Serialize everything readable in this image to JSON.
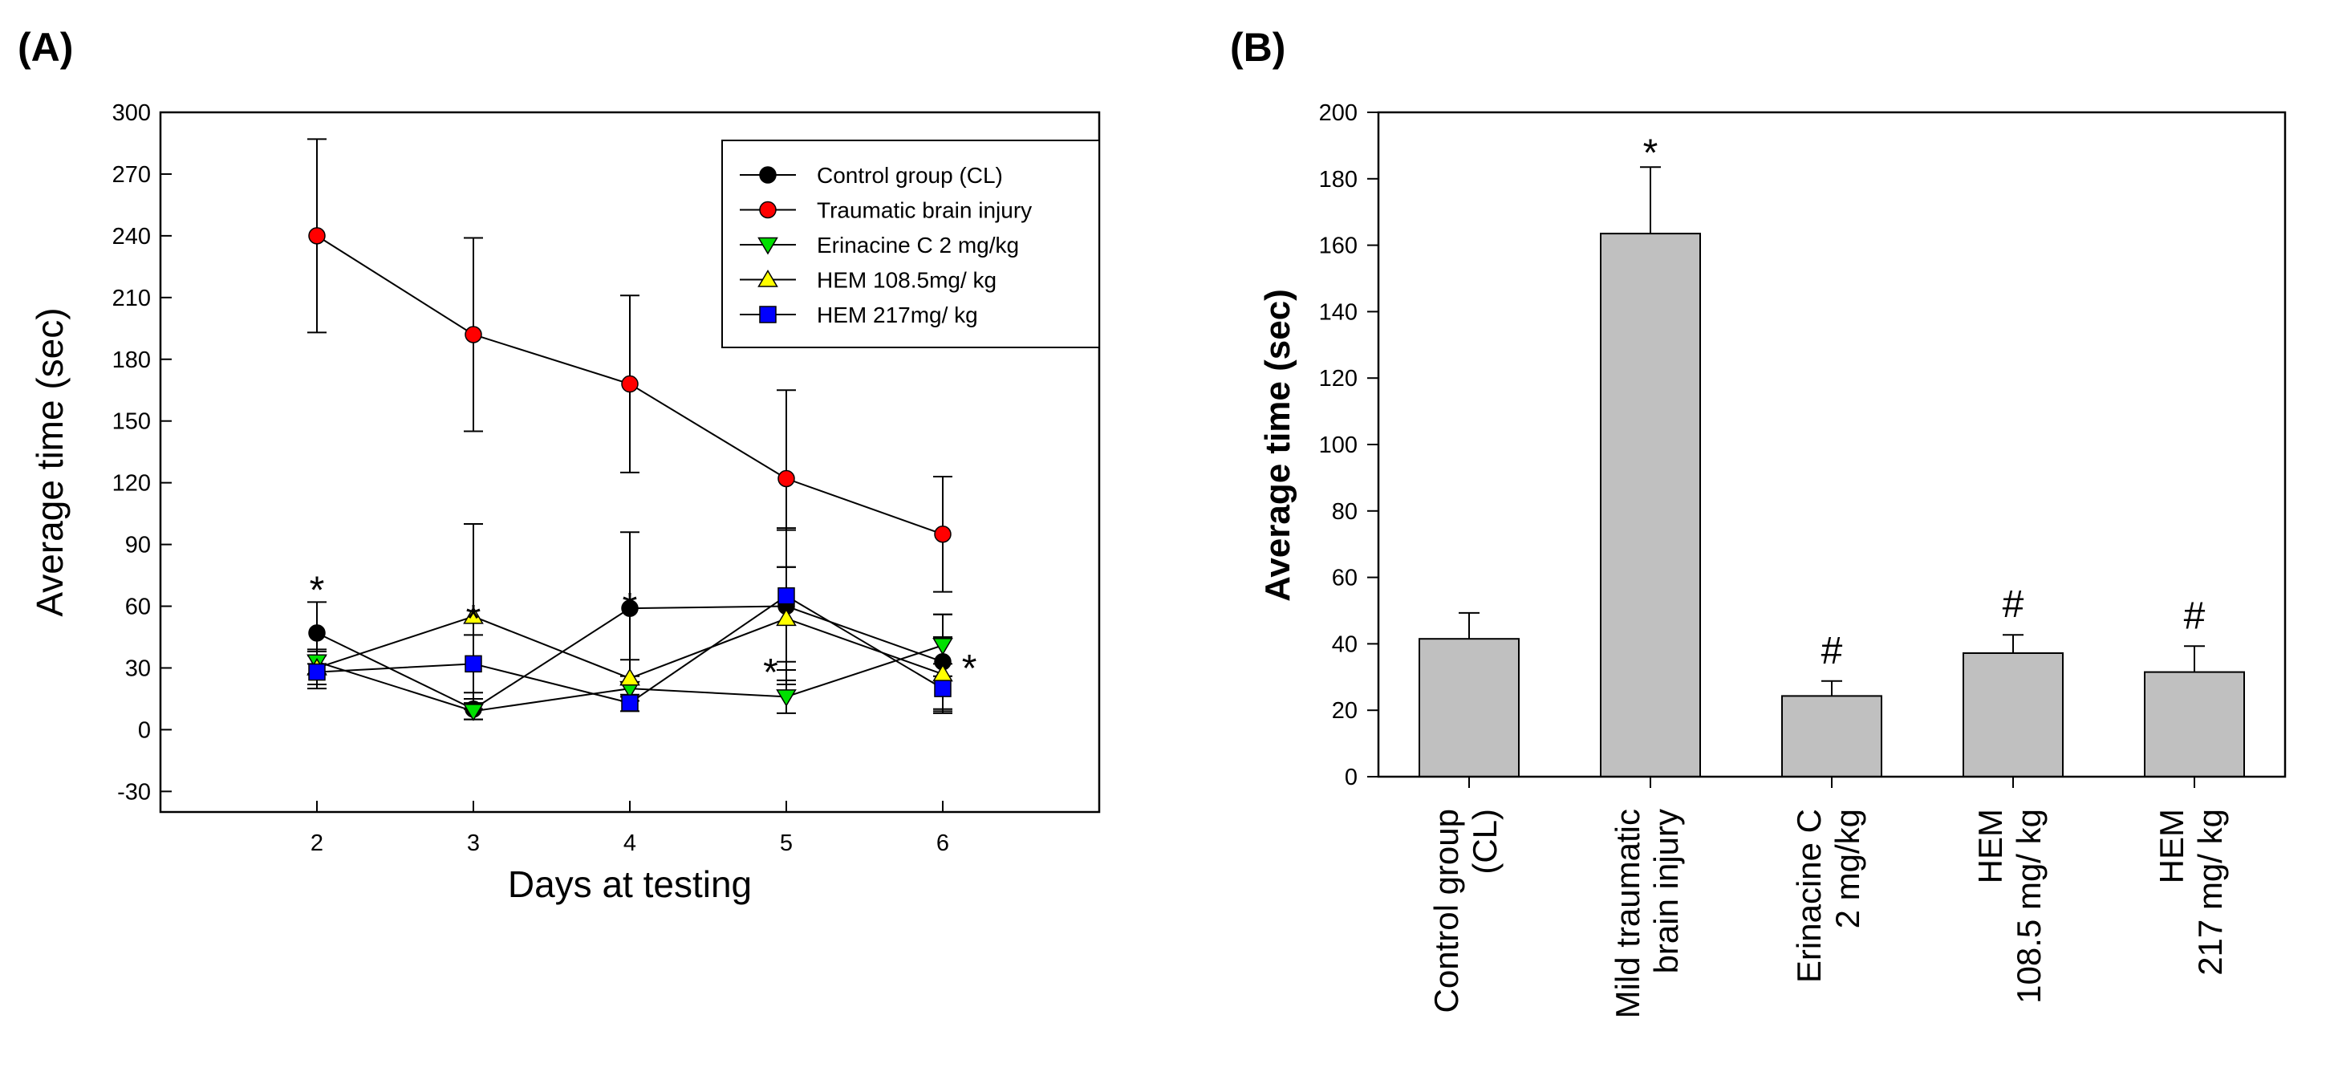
{
  "chart_data": [
    {
      "panel": "(A)",
      "type": "line",
      "xlabel": "Days at testing",
      "ylabel": "Average time (sec)",
      "x": [
        2,
        3,
        4,
        5,
        6
      ],
      "xlim": [
        1,
        7
      ],
      "ylim": [
        -40,
        300
      ],
      "yticks": [
        -30,
        0,
        30,
        60,
        90,
        120,
        150,
        180,
        210,
        240,
        270,
        300
      ],
      "legend_position": "top-right",
      "series": [
        {
          "name": "Control group (CL)",
          "marker": "circle",
          "color": "#000000",
          "values": [
            47,
            10,
            59,
            60,
            33
          ],
          "err": [
            15,
            5,
            37,
            38,
            23
          ]
        },
        {
          "name": "Traumatic brain injury",
          "marker": "circle",
          "color": "#ff0000",
          "values": [
            240,
            192,
            168,
            122,
            95
          ],
          "err": [
            47,
            47,
            43,
            43,
            28
          ]
        },
        {
          "name": "Erinacine C 2 mg/kg",
          "marker": "triangle-down",
          "color": "#00e000",
          "values": [
            33,
            9,
            20,
            16,
            41
          ],
          "err": [
            6,
            4,
            6,
            8,
            15
          ]
        },
        {
          "name": "HEM 108.5mg/ kg",
          "marker": "triangle-up",
          "color": "#ffff00",
          "values": [
            30,
            55,
            25,
            54,
            27
          ],
          "err": [
            8,
            45,
            9,
            25,
            18
          ]
        },
        {
          "name": "HEM 217mg/ kg",
          "marker": "square",
          "color": "#0000ff",
          "values": [
            28,
            32,
            13,
            65,
            20
          ],
          "err": [
            8,
            14,
            4,
            32,
            12
          ]
        }
      ],
      "annotations": [
        {
          "text": "*",
          "x": 2,
          "y": 71
        },
        {
          "text": "*",
          "x": 3,
          "y": 57
        },
        {
          "text": "*",
          "x": 4,
          "y": 63
        },
        {
          "text": "*",
          "x": 4.9,
          "y": 31
        },
        {
          "text": "*",
          "x": 6.17,
          "y": 33
        }
      ]
    },
    {
      "panel": "(B)",
      "type": "bar",
      "ylabel": "Average time (sec)",
      "ylim": [
        0,
        200
      ],
      "yticks": [
        0,
        20,
        40,
        60,
        80,
        100,
        120,
        140,
        160,
        180,
        200
      ],
      "bar_color": "#c0c0c0",
      "categories": [
        [
          "Control group",
          "(CL)"
        ],
        [
          "Mild traumatic",
          "brain injury"
        ],
        [
          "Erinacine C",
          "2 mg/kg"
        ],
        [
          "HEM",
          "108.5 mg/ kg"
        ],
        [
          "HEM",
          "217 mg/ kg"
        ]
      ],
      "values": [
        41.5,
        163.5,
        24.3,
        37.2,
        31.5
      ],
      "err": [
        7.8,
        20,
        4.5,
        5.5,
        7.8
      ],
      "annotations": [
        "",
        "*",
        "#",
        "#",
        "#"
      ]
    }
  ]
}
